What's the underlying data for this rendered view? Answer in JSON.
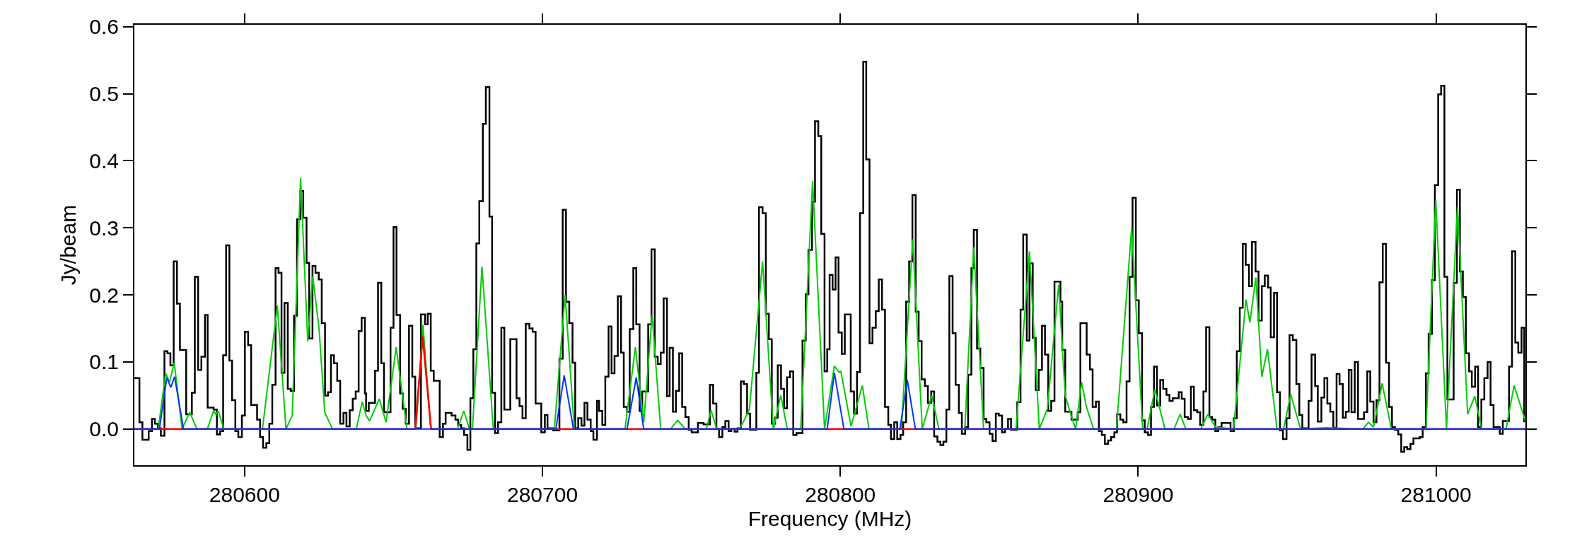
{
  "chart_data": {
    "type": "line",
    "xlabel": "Frequency (MHz)",
    "ylabel": "Jy/beam",
    "xlim": [
      280563,
      281030
    ],
    "ylim": [
      -0.054,
      0.603
    ],
    "xticks": [
      280600,
      280700,
      280800,
      280900,
      281000
    ],
    "yticks": [
      {
        "value": 0,
        "label": "0.0"
      },
      0.1,
      0.2,
      0.3,
      0.4,
      0.5,
      0.6
    ],
    "grid": false,
    "series": [
      {
        "type": "step",
        "color": "#000000",
        "x": [
          280563.0,
          280564.7,
          280565.7,
          280567.8,
          280568.9,
          280569.9,
          280570.9,
          280571.9,
          280573.1,
          280574.1,
          280575.1,
          280576.2,
          280577.3,
          280578.3,
          280580.4,
          280582.3,
          280583.3,
          280584.4,
          280585.5,
          280586.7,
          280587.6,
          280589.6,
          280590.7,
          280591.8,
          280592.8,
          280593.8,
          280594.9,
          280595.8,
          280596.9,
          280597.9,
          280599.1,
          280600.1,
          280601.2,
          280602.2,
          280604.2,
          280605.2,
          280606.2,
          280607.3,
          280608.3,
          280609.3,
          280610.4,
          280611.4,
          280612.4,
          280613.4,
          280614.5,
          280615.5,
          280616.6,
          280617.6,
          280618.7,
          280619.7,
          280620.8,
          280621.7,
          280622.8,
          280623.8,
          280624.9,
          280625.9,
          280627.0,
          280628.0,
          280629.0,
          280630.0,
          280631.1,
          280632.1,
          280633.2,
          280634.2,
          280635.3,
          280636.3,
          280637.3,
          280638.3,
          280639.3,
          280640.4,
          280640.8,
          280641.7,
          280643.8,
          280644.8,
          280645.9,
          280646.8,
          280649.0,
          280650.0,
          280651.0,
          280652.2,
          280653.1,
          280654.1,
          280655.2,
          280656.3,
          280657.3,
          280659.2,
          280660.6,
          280661.5,
          280662.5,
          280663.5,
          280665.5,
          280666.6,
          280667.5,
          280669.5,
          280670.8,
          280671.7,
          280672.7,
          280673.7,
          280674.8,
          280675.8,
          280676.8,
          280677.8,
          280678.8,
          280680.0,
          280681.0,
          280682.2,
          280683.1,
          280684.1,
          280685.1,
          280686.2,
          280687.2,
          280689.2,
          280691.3,
          280692.3,
          280693.3,
          280694.4,
          280695.6,
          280696.7,
          280697.7,
          280699.6,
          280700.8,
          280701.7,
          280703.6,
          280705.7,
          280706.8,
          280707.9,
          280709.0,
          280710.1,
          280711.0,
          280712.0,
          280713.1,
          280714.1,
          280715.1,
          280716.2,
          280717.1,
          280718.3,
          280719.0,
          280720.1,
          280721.1,
          280722.2,
          280723.2,
          280724.2,
          280725.3,
          280726.4,
          280727.3,
          280728.4,
          280729.3,
          280730.5,
          280731.5,
          280732.6,
          280733.5,
          280735.5,
          280736.6,
          280737.7,
          280738.7,
          280739.7,
          280740.7,
          280741.8,
          280742.7,
          280743.8,
          280744.8,
          280745.9,
          280746.9,
          280748.0,
          280749.1,
          280750.1,
          280752.2,
          280754.1,
          280756.2,
          280757.3,
          280758.4,
          280759.3,
          280760.4,
          280761.4,
          280762.5,
          280763.4,
          280764.5,
          280765.5,
          280766.6,
          280767.6,
          280768.7,
          280769.7,
          280771.8,
          280772.7,
          280773.9,
          280775.0,
          280776.0,
          280777.0,
          280778.1,
          280779.0,
          280780.1,
          280781.1,
          280782.1,
          280783.1,
          280784.2,
          280785.3,
          280787.3,
          280788.4,
          280789.3,
          280790.5,
          280791.5,
          280792.6,
          280793.6,
          280794.7,
          280795.6,
          280796.4,
          280797.4,
          280798.4,
          280799.4,
          280800.5,
          280801.5,
          280803.5,
          280804.6,
          280805.6,
          280806.6,
          280807.7,
          280808.7,
          280809.8,
          280810.8,
          280811.9,
          280812.9,
          280814.0,
          280815.0,
          280816.1,
          280817.0,
          280818.1,
          280819.1,
          280820.2,
          280821.1,
          280822.1,
          280823.1,
          280824.2,
          280825.3,
          280826.3,
          280827.3,
          280828.4,
          280829.4,
          280830.5,
          280831.5,
          280832.6,
          280833.6,
          280834.6,
          280835.6,
          280836.6,
          280837.7,
          280838.7,
          280839.8,
          280840.8,
          280841.9,
          280842.9,
          280844.0,
          280844.8,
          280845.9,
          280847.0,
          280848.1,
          280849.0,
          280850.1,
          280851.1,
          280852.2,
          280853.2,
          280854.3,
          280855.3,
          280856.3,
          280857.3,
          280859.4,
          280860.5,
          280861.4,
          280862.6,
          280863.5,
          280864.6,
          280865.6,
          280866.6,
          280867.7,
          280868.7,
          280869.8,
          280870.8,
          280871.9,
          280873.9,
          280874.5,
          280875.5,
          280877.6,
          280879.7,
          280880.6,
          280882.7,
          280883.8,
          280884.7,
          280885.8,
          280886.8,
          280887.8,
          280888.8,
          280889.9,
          280890.9,
          280892.0,
          280892.9,
          280894.0,
          280895.0,
          280896.1,
          280897.1,
          280898.1,
          280899.2,
          280900.2,
          280901.3,
          280902.2,
          280903.3,
          280904.3,
          280905.3,
          280906.3,
          280907.4,
          280908.4,
          280909.5,
          280910.5,
          280911.6,
          280913.6,
          280914.6,
          280915.6,
          280916.7,
          280917.7,
          280918.7,
          280919.8,
          280920.8,
          280921.9,
          280922.8,
          280923.9,
          280924.8,
          280925.9,
          280926.9,
          280928.0,
          280931.0,
          280932.1,
          280933.1,
          280934.1,
          280935.1,
          280936.1,
          280937.2,
          280938.2,
          280939.4,
          280940.4,
          280941.5,
          280942.5,
          280943.6,
          280944.5,
          280945.6,
          280946.6,
          280947.6,
          280948.6,
          280949.8,
          280950.8,
          280951.9,
          280953.1,
          280954.1,
          280955.1,
          280957.2,
          280958.2,
          280959.4,
          280960.3,
          280961.5,
          280962.5,
          280963.5,
          280964.5,
          280965.5,
          280966.6,
          280967.6,
          280968.7,
          280969.7,
          280970.7,
          280971.6,
          280972.7,
          280973.8,
          280975.8,
          280976.9,
          280977.9,
          280979.0,
          280980.0,
          280981.0,
          280982.1,
          280983.2,
          280984.2,
          280985.2,
          280986.2,
          280987.3,
          280988.3,
          280989.3,
          280990.3,
          280991.4,
          280992.4,
          280994.5,
          280995.5,
          280996.6,
          280997.5,
          280998.6,
          280999.6,
          281000.7,
          281001.7,
          281002.8,
          281003.8,
          281005.9,
          281007.0,
          281008.0,
          281009.0,
          281010.0,
          281011.1,
          281012.0,
          281013.1,
          281014.1,
          281015.2,
          281016.2,
          281017.3,
          281018.3,
          281019.3,
          281021.4,
          281022.4,
          281024.5,
          281025.5,
          281026.6,
          281027.6,
          281028.7,
          281029.6
        ],
        "values": [
          0.076,
          0.01,
          -0.016,
          -0.003,
          0.015,
          0.008,
          0.001,
          -0.01,
          0.116,
          0.113,
          0.095,
          0.25,
          0.187,
          0.118,
          0.022,
          0.054,
          0.227,
          0.088,
          0.108,
          0.17,
          0.032,
          0.029,
          -0.008,
          -0.003,
          0.11,
          0.274,
          0.102,
          0.043,
          -0.003,
          -0.012,
          0.02,
          0.145,
          0.125,
          0.036,
          0.014,
          -0.012,
          -0.028,
          -0.021,
          0.008,
          0.066,
          0.24,
          0.233,
          0.084,
          0.188,
          0.06,
          0.057,
          0.169,
          0.313,
          0.355,
          0.315,
          0.248,
          0.135,
          0.243,
          0.233,
          0.223,
          0.158,
          0.05,
          0.055,
          0.11,
          0.098,
          0.072,
          0.008,
          0.024,
          0.004,
          0.028,
          0.045,
          0.056,
          0.146,
          0.166,
          0.053,
          0.027,
          0.039,
          0.087,
          0.218,
          0.098,
          0.025,
          0.151,
          0.301,
          0.17,
          0.053,
          0.03,
          0.008,
          0.154,
          0.078,
          0.001,
          0.171,
          0.156,
          0.172,
          0.087,
          0.072,
          -0.012,
          0.008,
          0.024,
          0.02,
          0.014,
          0.006,
          0.001,
          -0.009,
          -0.031,
          0.046,
          0.119,
          0.277,
          0.34,
          0.455,
          0.51,
          0.317,
          0.054,
          -0.006,
          0.01,
          0.151,
          0.029,
          0.134,
          0.046,
          0.034,
          0.016,
          0.157,
          0.15,
          0.145,
          0.038,
          -0.005,
          0.021,
          0.001,
          -0.002,
          0.105,
          0.327,
          0.19,
          0.158,
          0.099,
          0.001,
          0.016,
          0.005,
          0.039,
          0.014,
          -0.003,
          -0.016,
          0.042,
          0.027,
          0.006,
          0.078,
          0.153,
          0.083,
          0.109,
          0.198,
          0.114,
          0.033,
          0.026,
          0.149,
          0.24,
          0.156,
          0.027,
          0.056,
          0.156,
          0.268,
          0.108,
          0.097,
          0.114,
          0.195,
          0.049,
          0.121,
          0.026,
          0.057,
          0.113,
          0.033,
          0.018,
          -0.001,
          -0.005,
          0.009,
          0.007,
          0.066,
          0.038,
          0,
          -0.012,
          0.003,
          0.012,
          -0.003,
          0,
          -0.004,
          0.001,
          0.071,
          0.067,
          0.023,
          -0.001,
          0.084,
          0.331,
          0.322,
          0.172,
          0.134,
          0.008,
          0.017,
          0.095,
          0.06,
          0.031,
          0.077,
          0.086,
          -0.009,
          -0.006,
          0.132,
          0.201,
          0.267,
          0.339,
          0.459,
          0.437,
          0.291,
          0.086,
          0.119,
          0.23,
          0.208,
          0.256,
          0.144,
          0.112,
          0.171,
          0.056,
          0.023,
          0.085,
          0.322,
          0.548,
          0.402,
          0.128,
          0.151,
          0.176,
          0.223,
          0.178,
          0.033,
          0.006,
          -0.015,
          0.01,
          -0.015,
          -0.009,
          0.01,
          0.19,
          0.25,
          0.349,
          0.175,
          0.131,
          0.074,
          0.064,
          0.039,
          0.056,
          -0.011,
          -0.019,
          -0.024,
          -0.019,
          0.029,
          0.228,
          0.143,
          0.066,
          0.024,
          -0.007,
          0.003,
          0.081,
          0.24,
          0.297,
          0.12,
          0.091,
          0.015,
          0.01,
          -0.007,
          -0.018,
          0.023,
          0.02,
          -0.005,
          0,
          0.015,
          -0.001,
          0.04,
          0.178,
          0.29,
          0.132,
          0.247,
          0.136,
          0.058,
          0.088,
          0.154,
          0.111,
          0.027,
          0.042,
          0.22,
          0.19,
          0.118,
          0.026,
          0.014,
          0.025,
          0.158,
          0.111,
          0.089,
          0.033,
          0.041,
          -0.003,
          -0.009,
          -0.022,
          -0.017,
          -0.012,
          -0.005,
          0.022,
          0.014,
          0.01,
          0.071,
          0.227,
          0.345,
          0.192,
          0.143,
          0.013,
          -0.005,
          -0.009,
          0.033,
          0.093,
          0.035,
          0.073,
          0.06,
          0.051,
          0.042,
          0.046,
          0.055,
          0.045,
          0.018,
          0.015,
          0.063,
          0.028,
          0.025,
          0.006,
          0.056,
          0.152,
          0.018,
          0.014,
          -0.003,
          0.003,
          0.009,
          -0.003,
          0.016,
          0.116,
          0.181,
          0.276,
          0.245,
          0.213,
          0.279,
          0.235,
          0.162,
          0.213,
          0.229,
          0.211,
          0.137,
          0.203,
          0.055,
          -0.002,
          -0.015,
          0.016,
          0.14,
          0.133,
          0.067,
          0.021,
          0.001,
          0.042,
          0.111,
          0.064,
          0.011,
          0.047,
          0.076,
          0.038,
          0.026,
          0.002,
          0.082,
          0.067,
          0.017,
          0.026,
          0.088,
          0.025,
          0.1,
          0.015,
          0.025,
          0.086,
          0.041,
          0.01,
          0.043,
          0.219,
          0.276,
          0.099,
          0.033,
          0.003,
          -0.001,
          -0.008,
          -0.034,
          -0.027,
          -0.03,
          -0.022,
          -0.014,
          -0.012,
          0.003,
          0.083,
          0.142,
          0.222,
          0.364,
          0.499,
          0.512,
          0.227,
          0.044,
          0.218,
          0.357,
          0.235,
          0.197,
          0.113,
          0.086,
          0.063,
          0.093,
          0.003,
          0.044,
          0.076,
          0.1,
          0.036,
          0.003,
          -0.007,
          0.012,
          0.093,
          0.265,
          0.129,
          0.114,
          0.151,
          0.01
        ]
      },
      {
        "color": "#00cc00",
        "x": [
          280563,
          280571,
          280573.5,
          280574.8,
          280576.4,
          280579,
          280581.6,
          280584,
          280587.5,
          280589.6,
          280590.4,
          280591.2,
          280593,
          280606,
          280611.0,
          280613.9,
          280616,
          280618.8,
          280621.2,
          280622.9,
          280625,
          280626.9,
          280629.5,
          280637.5,
          280639.5,
          280640.8,
          280642,
          280645.2,
          280647.5,
          280650.9,
          280654.5,
          280657.5,
          280659.9,
          280662.5,
          280671.5,
          280673.6,
          280675.5,
          280676.5,
          280679.7,
          280683.5,
          280704,
          280707.6,
          280710.7,
          280727.7,
          280731.2,
          280734.0,
          280736.8,
          280739.7,
          280743,
          280745.4,
          280748,
          280755,
          280756.6,
          280758.5,
          280766,
          280767.4,
          280769.5,
          280773.9,
          280777.5,
          280780.0,
          280782.2,
          280786.7,
          280790.7,
          280794.7,
          280798.0,
          280799.5,
          280800.2,
          280803.6,
          280807.4,
          280809.6,
          280820.5,
          280824.3,
          280827.5,
          280830.7,
          280833.1,
          280841.8,
          280844.8,
          280848.1,
          280859.0,
          280863.5,
          280866.8,
          280869.5,
          280873.3,
          280875.5,
          280877.5,
          280879,
          280881.0,
          280882.5,
          280885,
          280892.7,
          280897.8,
          280901.5,
          280903,
          280905.6,
          280909,
          280912,
          280914.1,
          280916,
          280921,
          280923.4,
          280926,
          280932,
          280936.2,
          280937.5,
          280939.5,
          280941.5,
          280943.4,
          280946.6,
          280948.8,
          280951.2,
          280954.5,
          280963,
          280975.4,
          280977.3,
          280979,
          280981.9,
          280985,
          280996.6,
          280999.9,
          281003.5,
          281007.2,
          281010.6,
          281013.0,
          281015.3,
          281023.5,
          281026.2,
          281029.9
        ],
        "values": [
          0,
          0,
          0.083,
          0.07,
          0.099,
          0,
          0.025,
          0,
          0,
          0.027,
          0.022,
          0.027,
          0,
          0,
          0.184,
          0,
          0.02,
          0.375,
          0.131,
          0.228,
          0.15,
          0.025,
          0,
          0,
          0.041,
          0.02,
          0.012,
          0.045,
          0.01,
          0.122,
          0,
          0,
          0.155,
          0,
          0,
          0.027,
          0,
          0,
          0.242,
          0,
          0,
          0.2,
          0,
          0,
          0.122,
          0.01,
          0.17,
          0,
          0,
          0.013,
          0,
          0,
          0.028,
          0,
          0,
          0.01,
          0.03,
          0.25,
          0,
          0.05,
          0,
          0,
          0.37,
          0,
          0.094,
          0.085,
          0.086,
          0.004,
          0.065,
          0,
          0,
          0.283,
          0,
          0.05,
          0,
          0,
          0.271,
          0,
          0,
          0.265,
          0,
          0.03,
          0.215,
          0.05,
          0.02,
          0,
          0.07,
          0.035,
          0,
          0,
          0.3,
          0,
          0,
          0.059,
          0,
          0,
          0.022,
          0,
          0,
          0.022,
          0.003,
          0,
          0.193,
          0.159,
          0.226,
          0.078,
          0.119,
          0,
          0,
          0.052,
          0,
          0.002,
          0,
          0.01,
          0.003,
          0.068,
          0,
          0,
          0.342,
          0,
          0.333,
          0.022,
          0.049,
          0,
          0,
          0.065,
          0.013
        ]
      },
      {
        "color": "#ff0000",
        "x": [
          280563,
          280657.3,
          280659.8,
          280662.6,
          281030
        ],
        "values": [
          0,
          0,
          0.138,
          0,
          0
        ]
      },
      {
        "color": "#0033ff",
        "x": [
          280563,
          280571.4,
          280573.9,
          280575.2,
          280576.5,
          280579.5,
          280704.5,
          280707.3,
          280710.4,
          280728.4,
          280731.5,
          280734.0,
          280795.6,
          280798.0,
          280801.2,
          280820.0,
          280822.5,
          280825.2,
          281030
        ],
        "values": [
          0,
          0,
          0.077,
          0.062,
          0.078,
          0,
          0,
          0.08,
          0,
          0,
          0.077,
          0,
          0,
          0.084,
          0,
          0,
          0.073,
          0,
          0
        ]
      }
    ]
  }
}
